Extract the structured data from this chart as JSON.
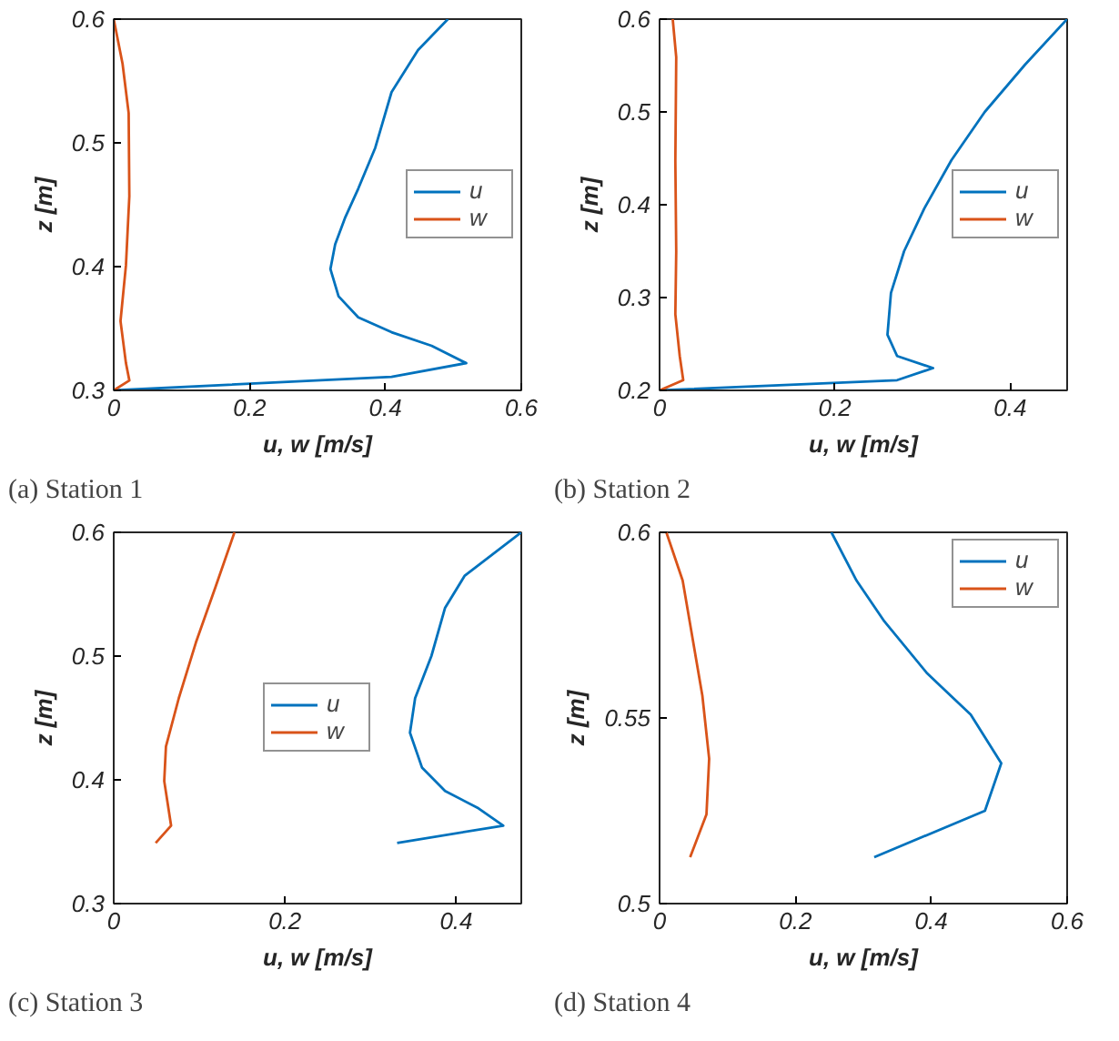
{
  "chart_data": [
    {
      "type": "line",
      "title": "(a) Station 1",
      "xlabel": "u, w [m/s]",
      "ylabel": "z [m]",
      "xlim": [
        0,
        0.6
      ],
      "ylim": [
        0.3,
        0.6
      ],
      "xticks": [
        0,
        0.2,
        0.4,
        0.6
      ],
      "yticks": [
        0.3,
        0.4,
        0.5,
        0.6
      ],
      "legend": "right",
      "grid": false,
      "series": [
        {
          "name": "u",
          "color": "#0072bd",
          "x": [
            0,
            0.409,
            0.519,
            0.468,
            0.409,
            0.36,
            0.331,
            0.319,
            0.326,
            0.341,
            0.36,
            0.385,
            0.409,
            0.448,
            0.492
          ],
          "values": [
            0.3,
            0.311,
            0.322,
            0.336,
            0.347,
            0.359,
            0.376,
            0.398,
            0.418,
            0.44,
            0.463,
            0.496,
            0.541,
            0.575,
            0.6
          ]
        },
        {
          "name": "w",
          "color": "#d95319",
          "x": [
            0,
            0.023,
            0.018,
            0.01,
            0.018,
            0.023,
            0.022,
            0.013,
            0
          ],
          "values": [
            0.3,
            0.308,
            0.322,
            0.356,
            0.401,
            0.457,
            0.524,
            0.564,
            0.6
          ]
        }
      ]
    },
    {
      "type": "line",
      "title": "(b) Station 2",
      "xlabel": "u, w [m/s]",
      "ylabel": "z [m]",
      "xlim": [
        0,
        0.465
      ],
      "ylim": [
        0.2,
        0.6
      ],
      "xticks": [
        0,
        0.2,
        0.4
      ],
      "yticks": [
        0.2,
        0.3,
        0.4,
        0.5,
        0.6
      ],
      "legend": "right",
      "grid": false,
      "series": [
        {
          "name": "u",
          "color": "#0072bd",
          "x": [
            0,
            0.271,
            0.312,
            0.271,
            0.26,
            0.264,
            0.279,
            0.302,
            0.333,
            0.371,
            0.417,
            0.465
          ],
          "values": [
            0.2,
            0.211,
            0.224,
            0.237,
            0.26,
            0.305,
            0.35,
            0.396,
            0.448,
            0.5,
            0.551,
            0.6
          ]
        },
        {
          "name": "w",
          "color": "#d95319",
          "x": [
            0,
            0.027,
            0.023,
            0.018,
            0.019,
            0.018,
            0.019,
            0.015
          ],
          "values": [
            0.2,
            0.211,
            0.237,
            0.282,
            0.35,
            0.447,
            0.559,
            0.6
          ]
        }
      ]
    },
    {
      "type": "line",
      "title": "(c) Station 3",
      "xlabel": "u, w [m/s]",
      "ylabel": "z [m]",
      "xlim": [
        0,
        0.476
      ],
      "ylim": [
        0.3,
        0.6
      ],
      "xticks": [
        0,
        0.2,
        0.4
      ],
      "yticks": [
        0.3,
        0.4,
        0.5,
        0.6
      ],
      "legend": "center",
      "grid": false,
      "series": [
        {
          "name": "u",
          "color": "#0072bd",
          "x": [
            0.331,
            0.455,
            0.426,
            0.387,
            0.36,
            0.346,
            0.352,
            0.371,
            0.387,
            0.41,
            0.476
          ],
          "values": [
            0.349,
            0.363,
            0.377,
            0.391,
            0.41,
            0.438,
            0.466,
            0.5,
            0.539,
            0.565,
            0.6
          ]
        },
        {
          "name": "w",
          "color": "#d95319",
          "x": [
            0.049,
            0.067,
            0.059,
            0.061,
            0.076,
            0.096,
            0.119,
            0.141
          ],
          "values": [
            0.349,
            0.363,
            0.399,
            0.427,
            0.466,
            0.511,
            0.556,
            0.6
          ]
        }
      ]
    },
    {
      "type": "line",
      "title": "(d) Station 4",
      "xlabel": "u, w [m/s]",
      "ylabel": "z [m]",
      "xlim": [
        0,
        0.6
      ],
      "ylim": [
        0.5,
        0.6
      ],
      "xticks": [
        0,
        0.2,
        0.4,
        0.6
      ],
      "yticks": [
        0.5,
        0.55,
        0.6
      ],
      "legend": "top right",
      "grid": false,
      "series": [
        {
          "name": "u",
          "color": "#0072bd",
          "x": [
            0.316,
            0.479,
            0.503,
            0.458,
            0.394,
            0.331,
            0.29,
            0.253
          ],
          "values": [
            0.5125,
            0.525,
            0.5378,
            0.5509,
            0.562,
            0.576,
            0.587,
            0.6
          ]
        },
        {
          "name": "w",
          "color": "#d95319",
          "x": [
            0.045,
            0.069,
            0.073,
            0.063,
            0.034,
            0.01
          ],
          "values": [
            0.5125,
            0.524,
            0.539,
            0.556,
            0.587,
            0.6
          ]
        }
      ]
    }
  ]
}
